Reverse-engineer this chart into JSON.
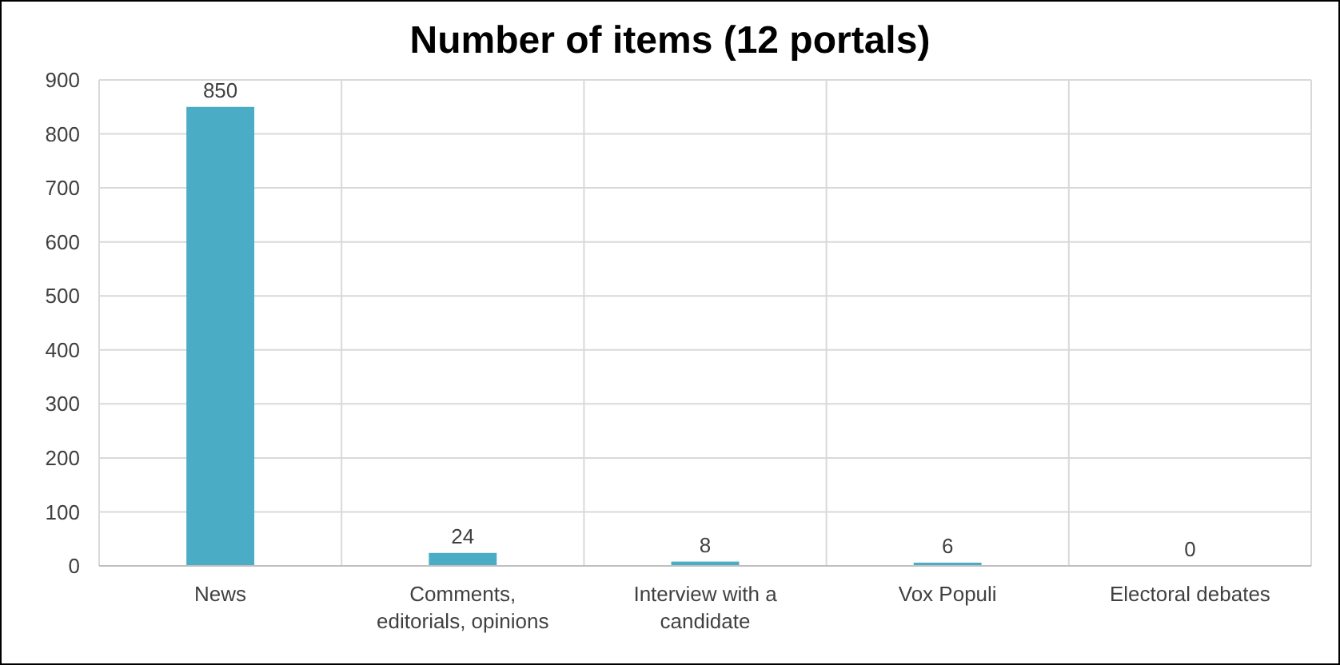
{
  "chart_data": {
    "type": "bar",
    "title": "Number of items (12 portals)",
    "categories": [
      "News",
      "Comments, editorials, opinions",
      "Interview with a candidate",
      "Vox Populi",
      "Electoral debates"
    ],
    "values": [
      850,
      24,
      8,
      6,
      0
    ],
    "color": "#4bacc6",
    "ylim": [
      0,
      900
    ],
    "yticks": [
      0,
      100,
      200,
      300,
      400,
      500,
      600,
      700,
      800,
      900
    ],
    "grid": true,
    "data_labels": true
  }
}
